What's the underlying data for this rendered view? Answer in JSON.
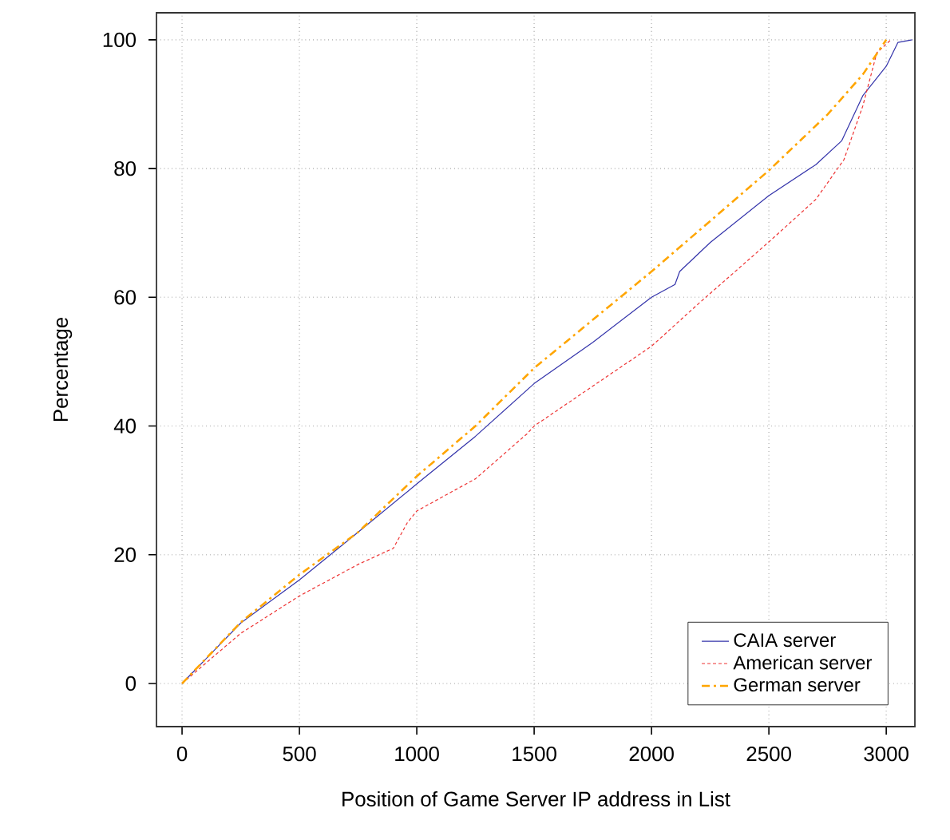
{
  "chart_data": {
    "type": "line",
    "xlabel": "Position of Game Server IP address in List",
    "ylabel": "Percentage",
    "xlim": [
      -109,
      3122
    ],
    "ylim": [
      -6.7,
      104.2
    ],
    "xticks": [
      0,
      500,
      1000,
      1500,
      2000,
      2500,
      3000
    ],
    "yticks": [
      0,
      20,
      40,
      60,
      80,
      100
    ],
    "grid": true,
    "legend": "bottom right",
    "series": [
      {
        "name": "CAIA server",
        "color": "#3333aa",
        "line_style": "solid",
        "x": [
          0,
          250,
          500,
          750,
          1000,
          1250,
          1500,
          1750,
          2000,
          2100,
          2120,
          2250,
          2500,
          2700,
          2810,
          2900,
          3000,
          3050,
          3110
        ],
        "values": [
          0,
          9.4,
          16.1,
          23.5,
          31,
          38.4,
          46.6,
          53,
          60,
          62,
          64,
          68.5,
          75.8,
          80.6,
          84.3,
          91.3,
          95.9,
          99.6,
          100
        ]
      },
      {
        "name": "American server",
        "color": "#ee3333",
        "line_style": "dashed",
        "x": [
          0,
          250,
          500,
          750,
          900,
          960,
          1000,
          1250,
          1470,
          1500,
          2000,
          2200,
          2500,
          2700,
          2820,
          2900,
          2960,
          3020
        ],
        "values": [
          0,
          7.8,
          13.6,
          18.5,
          21,
          25,
          26.8,
          31.8,
          38.8,
          40,
          52.4,
          59,
          68.6,
          75.2,
          81.4,
          89.7,
          98,
          100
        ]
      },
      {
        "name": "German server",
        "color": "#ffa500",
        "line_style": "dashdotted",
        "x": [
          0,
          250,
          500,
          750,
          1000,
          1250,
          1500,
          2000,
          2500,
          2750,
          2900,
          3000
        ],
        "values": [
          0,
          9.5,
          16.9,
          23.5,
          32.2,
          40,
          49,
          64,
          79.7,
          88.4,
          94.6,
          100
        ]
      }
    ]
  }
}
